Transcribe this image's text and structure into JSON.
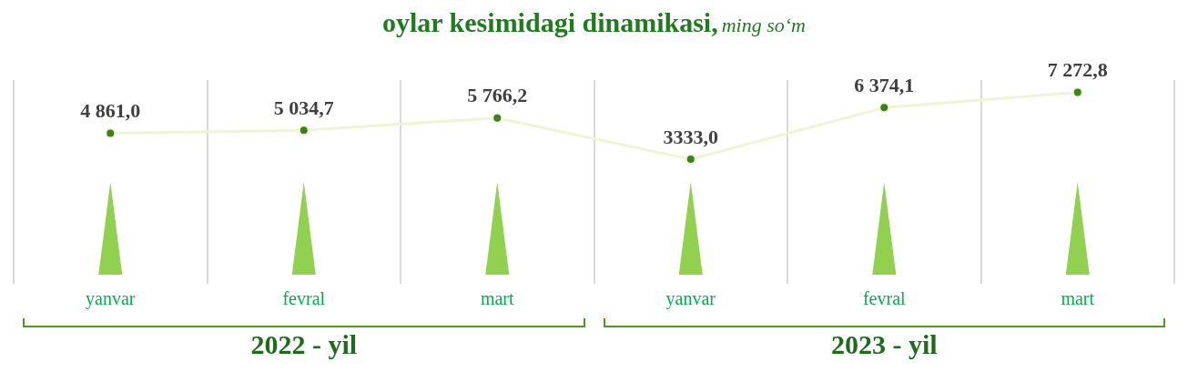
{
  "chart_data": {
    "type": "line",
    "title": "oylar kesimidagi dinamikasi,",
    "subtitle": "ming so‘m",
    "categories": [
      "yanvar",
      "fevral",
      "mart",
      "yanvar",
      "fevral",
      "mart"
    ],
    "series": [
      {
        "color": "#3f7f1e",
        "values": [
          4861.0,
          5034.7,
          5766.2,
          3333.0,
          6374.1,
          7272.8
        ],
        "value_labels": [
          "4 861,0",
          "5 034,7",
          "5 766,2",
          "3333,0",
          "6 374,1",
          "7 272,8"
        ]
      }
    ],
    "annotations": [
      "2022 - yil",
      "2023 - yil"
    ],
    "grid": "x",
    "legend": false,
    "marker": "circle",
    "line_style": "solid"
  }
}
